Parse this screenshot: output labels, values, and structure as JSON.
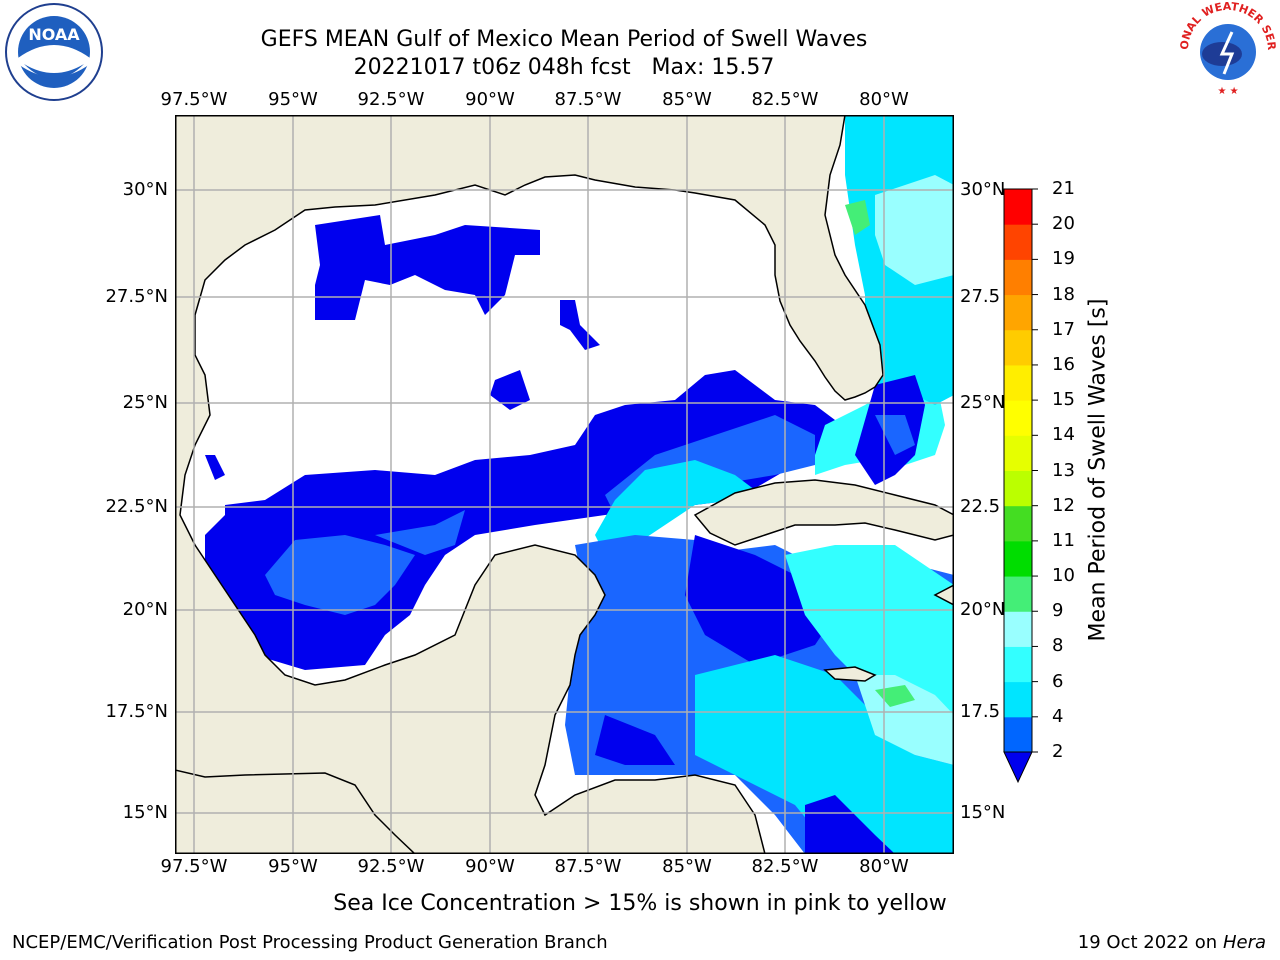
{
  "header": {
    "title_line1": "GEFS MEAN Gulf of Mexico Mean Period of Swell Waves",
    "title_line2": "20221017 t06z 048h fcst   Max: 15.57"
  },
  "logos": {
    "left": "NOAA",
    "right": "NATIONAL WEATHER SERVICE",
    "left_ring_text": "NATIONAL OCEANIC AND ATMOSPHERIC ADMINISTRATION"
  },
  "map": {
    "lon_labels": [
      "97.5°W",
      "95°W",
      "92.5°W",
      "90°W",
      "87.5°W",
      "85°W",
      "82.5°W",
      "80°W"
    ],
    "lat_labels_left": [
      "30°N",
      "27.5°N",
      "25°N",
      "22.5°N",
      "20°N",
      "17.5°N",
      "15°N"
    ],
    "lat_labels_right": [
      "30°N",
      "27.5",
      "25°N",
      "22.5",
      "20°N",
      "17.5",
      "15°N"
    ],
    "colors": {
      "land": "#efeddc",
      "water": "#ffffff",
      "grid": "#b0b0b0"
    }
  },
  "colorbar": {
    "label": "Mean Period of Swell Waves [s]",
    "ticks": [
      "2",
      "4",
      "6",
      "8",
      "9",
      "10",
      "11",
      "12",
      "13",
      "14",
      "15",
      "16",
      "17",
      "18",
      "19",
      "20",
      "21"
    ],
    "colors": [
      "#0066ff",
      "#00e5ff",
      "#33ffff",
      "#99ffff",
      "#44ee77",
      "#00dd00",
      "#44dd22",
      "#bbff00",
      "#e6ff00",
      "#ffff00",
      "#ffee00",
      "#ffcc00",
      "#ffa500",
      "#ff7f00",
      "#ff4400",
      "#ff0000"
    ],
    "extend_color": "#0000ee"
  },
  "note": "Sea Ice Concentration > 15% is shown in pink to yellow",
  "footer": {
    "left": "NCEP/EMC/Verification Post Processing Product Generation Branch",
    "date": "19 Oct 2022 on ",
    "host": "Hera"
  }
}
